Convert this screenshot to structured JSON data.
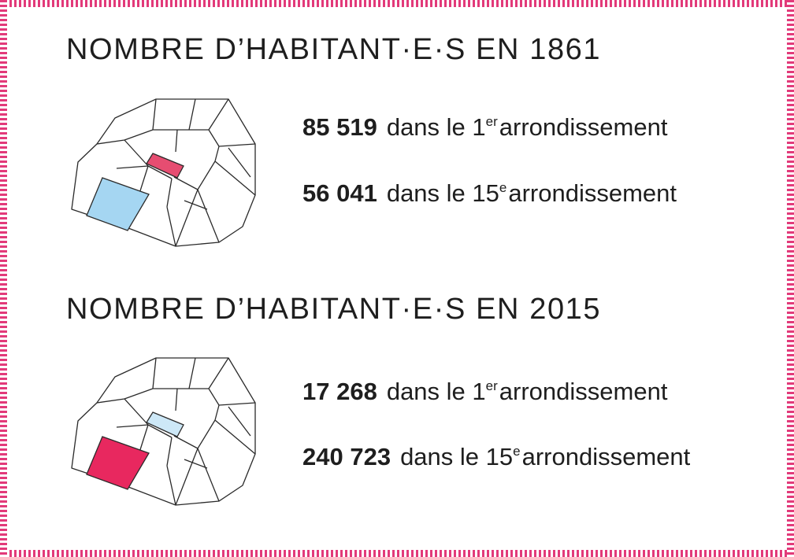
{
  "colors": {
    "frame": "#e23a7a",
    "highlight_pink": "#e8285f",
    "highlight_pink_soft": "#e64d71",
    "highlight_blue": "#a5d6f2",
    "highlight_blue_soft": "#cde8f7",
    "map_stroke": "#2a2a2a"
  },
  "sections": [
    {
      "title": "NOMBRE D’HABITANT·E·S EN 1861",
      "map": {
        "arrondissement_1_fill": "pink",
        "arrondissement_15_fill": "blue"
      },
      "stats": [
        {
          "value": "85 519",
          "text_before": "dans le 1",
          "superscript": "er",
          "text_after": "arrondissement"
        },
        {
          "value": "56 041",
          "text_before": "dans le 15",
          "superscript": "e",
          "text_after": "arrondissement"
        }
      ]
    },
    {
      "title": "NOMBRE D’HABITANT·E·S EN 2015",
      "map": {
        "arrondissement_1_fill": "blue",
        "arrondissement_15_fill": "pink"
      },
      "stats": [
        {
          "value": "17 268",
          "text_before": "dans le 1",
          "superscript": "er",
          "text_after": "arrondissement"
        },
        {
          "value": "240 723",
          "text_before": "dans le 15",
          "superscript": "e",
          "text_after": "arrondissement"
        }
      ]
    }
  ]
}
